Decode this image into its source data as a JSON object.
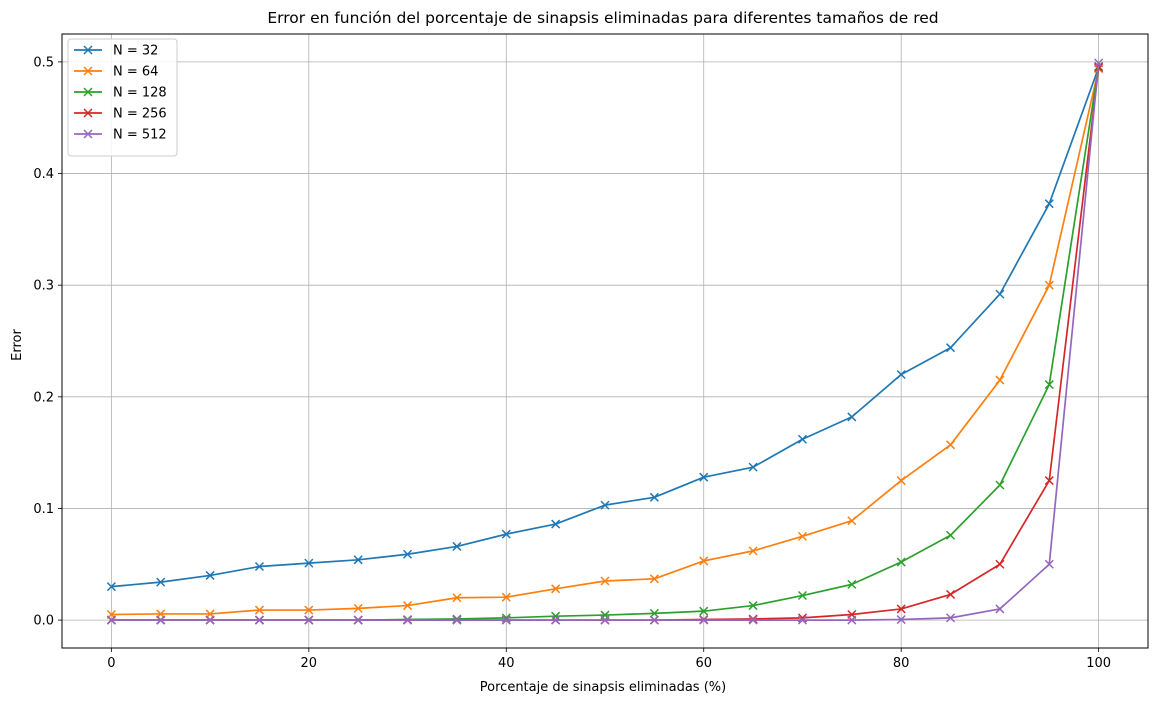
{
  "chart_data": {
    "type": "line",
    "title": "Error en función del porcentaje de sinapsis eliminadas para diferentes tamaños de red",
    "xlabel": "Porcentaje de sinapsis eliminadas (%)",
    "ylabel": "Error",
    "xlim": [
      -5,
      105
    ],
    "ylim": [
      -0.025,
      0.525
    ],
    "xticks": [
      0,
      20,
      40,
      60,
      80,
      100
    ],
    "yticks": [
      0.0,
      0.1,
      0.2,
      0.3,
      0.4,
      0.5
    ],
    "xtick_labels": [
      "0",
      "20",
      "40",
      "60",
      "80",
      "100"
    ],
    "ytick_labels": [
      "0.0",
      "0.1",
      "0.2",
      "0.3",
      "0.4",
      "0.5"
    ],
    "grid": true,
    "legend_position": "top-left",
    "marker": "x",
    "x": [
      0,
      5,
      10,
      15,
      20,
      25,
      30,
      35,
      40,
      45,
      50,
      55,
      60,
      65,
      70,
      75,
      80,
      85,
      90,
      95,
      100
    ],
    "series": [
      {
        "name": "N = 32",
        "color": "#1f77b4",
        "values": [
          0.03,
          0.034,
          0.04,
          0.048,
          0.051,
          0.054,
          0.059,
          0.066,
          0.077,
          0.086,
          0.103,
          0.11,
          0.128,
          0.137,
          0.162,
          0.182,
          0.22,
          0.244,
          0.292,
          0.373,
          0.495
        ]
      },
      {
        "name": "N = 64",
        "color": "#ff7f0e",
        "values": [
          0.005,
          0.0055,
          0.0055,
          0.009,
          0.009,
          0.0105,
          0.013,
          0.02,
          0.0205,
          0.028,
          0.035,
          0.037,
          0.053,
          0.062,
          0.075,
          0.089,
          0.125,
          0.157,
          0.215,
          0.3,
          0.494
        ]
      },
      {
        "name": "N = 128",
        "color": "#2ca02c",
        "values": [
          0.0,
          0.0,
          0.0,
          0.0,
          0.0,
          0.0,
          0.0005,
          0.001,
          0.002,
          0.0035,
          0.0045,
          0.006,
          0.008,
          0.013,
          0.022,
          0.032,
          0.052,
          0.076,
          0.121,
          0.211,
          0.496
        ]
      },
      {
        "name": "N = 256",
        "color": "#d62728",
        "values": [
          0.0,
          0.0,
          0.0,
          0.0,
          0.0,
          0.0,
          0.0,
          0.0,
          0.0,
          0.0,
          0.0,
          0.0,
          0.0005,
          0.001,
          0.002,
          0.005,
          0.01,
          0.023,
          0.05,
          0.125,
          0.495
        ]
      },
      {
        "name": "N = 512",
        "color": "#9467bd",
        "values": [
          0.0,
          0.0,
          0.0,
          0.0,
          0.0,
          0.0,
          0.0,
          0.0,
          0.0,
          0.0,
          0.0,
          0.0,
          0.0,
          0.0,
          0.0,
          0.0,
          0.0005,
          0.002,
          0.01,
          0.05,
          0.499
        ]
      }
    ]
  }
}
